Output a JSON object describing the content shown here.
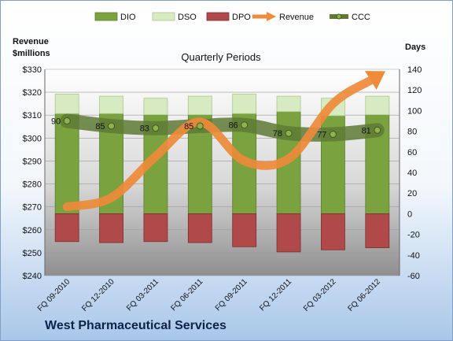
{
  "chart_data": {
    "type": "bar",
    "title": "Quarterly Periods",
    "company": "West Pharmaceutical Services",
    "left_axis": {
      "label_line1": "Revenue",
      "label_line2": "$millions",
      "ylim": [
        240,
        330
      ],
      "ticks": [
        "$240",
        "$250",
        "$260",
        "$270",
        "$280",
        "$290",
        "$300",
        "$310",
        "$320",
        "$330"
      ]
    },
    "right_axis": {
      "label": "Days",
      "ylim": [
        -60,
        140
      ],
      "ticks": [
        "-60",
        "-40",
        "-20",
        "0",
        "20",
        "40",
        "60",
        "80",
        "100",
        "120",
        "140"
      ]
    },
    "categories": [
      "FQ 09-2010",
      "FQ 12-2010",
      "FQ 03-2011",
      "FQ 06-2011",
      "FQ 09-2011",
      "FQ 12-2011",
      "FQ 03-2012",
      "FQ 06-2012"
    ],
    "legend_position": "top",
    "series": [
      {
        "name": "DIO",
        "kind": "stacked-bar",
        "axis": "right",
        "color": "#7aa23f",
        "values": [
          97,
          97,
          96,
          96,
          97,
          99,
          95,
          96
        ]
      },
      {
        "name": "DSO",
        "kind": "stacked-bar",
        "axis": "right",
        "color": "#d8eac2",
        "values": [
          19,
          17,
          16,
          18,
          19,
          15,
          17,
          18
        ]
      },
      {
        "name": "DPO",
        "kind": "bar-negative",
        "axis": "right",
        "color": "#b04a4a",
        "values": [
          -27,
          -28,
          -27,
          -28,
          -32,
          -37,
          -35,
          -33
        ]
      },
      {
        "name": "Revenue",
        "kind": "arrow-line",
        "axis": "left",
        "color": "#ee8a3a",
        "values": [
          270,
          274,
          292,
          307,
          290,
          291,
          315,
          327
        ]
      },
      {
        "name": "CCC",
        "kind": "line",
        "axis": "right",
        "color": "#5e7a35",
        "values": [
          90,
          85,
          83,
          85,
          86,
          78,
          77,
          81
        ],
        "labels": [
          "90",
          "85",
          "83",
          "85",
          "86",
          "78",
          "77",
          "81"
        ]
      }
    ]
  }
}
